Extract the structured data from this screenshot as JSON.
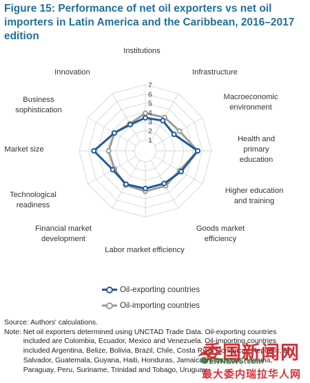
{
  "title": "Figure 15: Performance of net oil exporters vs net oil importers in Latin America and the Caribbean, 2016–2017 edition",
  "chart_data": {
    "type": "radar",
    "axes": [
      "Institutions",
      "Infrastructure",
      "Macroeconomic environment",
      "Health and primary education",
      "Higher education and training",
      "Goods market efficiency",
      "Labor market efficiency",
      "Financial market development",
      "Technological readiness",
      "Market size",
      "Business sophistication",
      "Innovation"
    ],
    "axis_label_lines": [
      [
        "Institutions"
      ],
      [
        "Infrastructure"
      ],
      [
        "Macroeconomic",
        "environment"
      ],
      [
        "Health and",
        "primary",
        "education"
      ],
      [
        "Higher education",
        "and training"
      ],
      [
        "Goods market",
        "efficiency"
      ],
      [
        "Labor market efficiency"
      ],
      [
        "Financial market",
        "development"
      ],
      [
        "Technological",
        "readiness"
      ],
      [
        "Market size"
      ],
      [
        "Business",
        "sophistication"
      ],
      [
        "Innovation"
      ]
    ],
    "r_range": [
      1,
      7
    ],
    "ticks": [
      "1",
      "2",
      "3",
      "4",
      "5",
      "6",
      "7"
    ],
    "grid": true,
    "legend_position": "bottom",
    "series": [
      {
        "name": "Oil-exporting countries",
        "color": "#1f5a9a",
        "values": [
          3.4,
          3.6,
          3.4,
          5.5,
          4.3,
          3.9,
          3.9,
          4.0,
          3.9,
          5.4,
          3.7,
          3.1
        ]
      },
      {
        "name": "Oil-importing countries",
        "color": "#9b9b9b",
        "values": [
          3.9,
          4.0,
          4.1,
          5.5,
          4.1,
          4.2,
          4.2,
          4.1,
          3.7,
          3.8,
          3.7,
          3.2
        ]
      }
    ]
  },
  "source": "Source: Authors' calculations.",
  "note_label": "Note: ",
  "note_text": "Net oil exporters determined using UNCTAD Trade Data. Oil-exporting countries included are Colombia, Ecuador, Mexico and Venezuela. Oil-importing countries included Argentina, Belize, Bolivia, Brazil, Chile, Costa Rica, Dominican Republic, El Salvador, Guatemala, Guyana, Haiti, Honduras, Jamaica, Nicaragua, Panama, Paraguay, Peru, Suriname, Trinidad and Tobago, Uruguay.",
  "watermark": {
    "main": "委国新闻网",
    "url": "VENNEWS.com",
    "sub": "最大委内瑞拉华人网",
    "main_color": "#d31f26",
    "url_color": "#2f7c3e"
  }
}
